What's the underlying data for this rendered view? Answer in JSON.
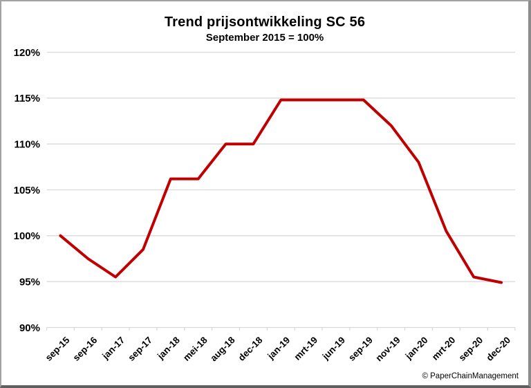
{
  "header": {
    "title": "Trend prijsontwikkeling SC 56",
    "subtitle": "September 2015 = 100%"
  },
  "footer": {
    "copyright": "© PaperChainManagement"
  },
  "chart_data": {
    "type": "line",
    "title": "Trend prijsontwikkeling SC 56",
    "subtitle": "September 2015 = 100%",
    "categories": [
      "sep-15",
      "sep-16",
      "jan-17",
      "sep-17",
      "jan-18",
      "mei-18",
      "aug-18",
      "dec-18",
      "jan-19",
      "mrt-19",
      "jun-19",
      "sep-19",
      "nov-19",
      "jan-20",
      "mrt-20",
      "sep-20",
      "dec-20"
    ],
    "values": [
      100,
      97.5,
      95.5,
      98.5,
      106.2,
      106.2,
      110,
      110,
      114.8,
      114.8,
      114.8,
      114.8,
      112,
      108,
      100.5,
      95.5,
      94.9
    ],
    "xlabel": "",
    "ylabel": "",
    "ylim": [
      90,
      120
    ],
    "ytick_step": 5,
    "ytick_labels": [
      "90%",
      "95%",
      "100%",
      "105%",
      "110%",
      "115%",
      "120%"
    ],
    "ytick_suffix": "%",
    "grid": true,
    "legend_position": "none",
    "line_color": "#c00000",
    "grid_color": "#d9d9d9",
    "text_color": "#000000",
    "line_width": 4
  }
}
